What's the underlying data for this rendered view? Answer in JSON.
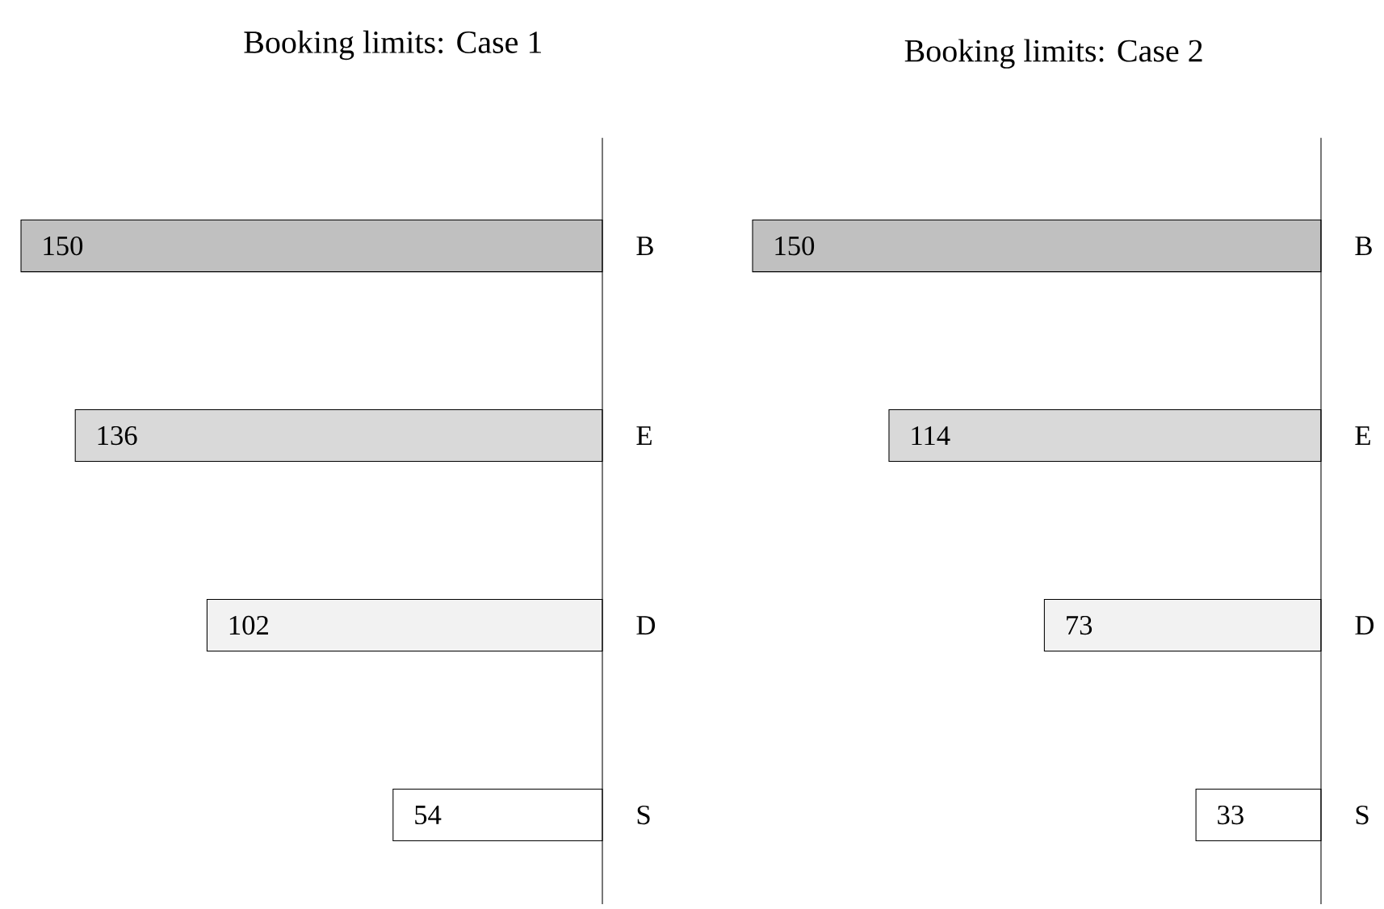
{
  "chart_data": [
    {
      "type": "bar",
      "orientation": "horizontal",
      "title": "Booking limits: Case 1",
      "categories": [
        "B",
        "E",
        "D",
        "S"
      ],
      "values": [
        150,
        136,
        102,
        54
      ],
      "colors": [
        "#c0c0c0",
        "#d9d9d9",
        "#f2f2f2",
        "#ffffff"
      ],
      "xlim": [
        150,
        0
      ],
      "data_labels": true,
      "tick_labels": "y"
    },
    {
      "type": "bar",
      "orientation": "horizontal",
      "title": "Booking limits: Case 2",
      "categories": [
        "B",
        "E",
        "D",
        "S"
      ],
      "values": [
        150,
        114,
        73,
        33
      ],
      "colors": [
        "#c0c0c0",
        "#d9d9d9",
        "#f2f2f2",
        "#ffffff"
      ],
      "xlim": [
        150,
        0
      ],
      "data_labels": true,
      "tick_labels": "y"
    }
  ]
}
